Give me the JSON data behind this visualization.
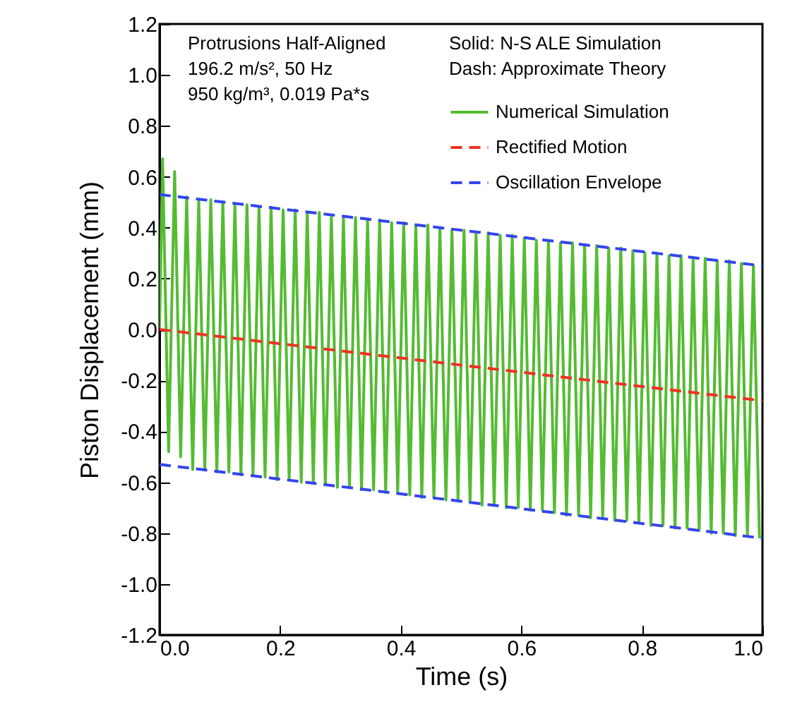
{
  "chart_data": {
    "type": "line",
    "xlabel": "Time (s)",
    "ylabel": "Piston Displacement (mm)",
    "xlim": [
      0,
      1
    ],
    "xticks": [
      {
        "value": 0,
        "label": "0.0"
      },
      0.2,
      0.4,
      0.6,
      0.8,
      {
        "value": 1,
        "label": "1.0"
      }
    ],
    "ylim": [
      -1.2,
      1.2
    ],
    "yticks": [
      -1.2,
      {
        "value": -1,
        "label": "-1.0"
      },
      -0.8,
      -0.6,
      -0.4,
      -0.2,
      {
        "value": 0,
        "label": "0.0"
      },
      0.2,
      0.4,
      0.6,
      0.8,
      {
        "value": 1,
        "label": "1.0"
      },
      1.2
    ],
    "grid": false,
    "legend": "top right",
    "marker": "none",
    "annotations": [
      "Protrusions Half-Aligned",
      "196.2 m/s², 50 Hz",
      "950 kg/m³, 0.019 Pa*s",
      "Solid:  N-S ALE Simulation",
      "Dash:  Approximate Theory"
    ],
    "series": [
      {
        "name": "Numerical Simulation",
        "color": "#55bb33",
        "line_style": "solid",
        "x": [
          0,
          0.005,
          0.015,
          0.025,
          0.035,
          0.045,
          0.055,
          0.065,
          0.075,
          0.085,
          0.095,
          0.105,
          0.115,
          0.125,
          0.135,
          0.145,
          0.155,
          0.165,
          0.175,
          0.185,
          0.195,
          0.205,
          0.215,
          0.225,
          0.235,
          0.245,
          0.255,
          0.265,
          0.275,
          0.285,
          0.295,
          0.305,
          0.315,
          0.325,
          0.335,
          0.345,
          0.355,
          0.365,
          0.375,
          0.385,
          0.395,
          0.405,
          0.415,
          0.425,
          0.435,
          0.445,
          0.455,
          0.465,
          0.475,
          0.485,
          0.495,
          0.505,
          0.515,
          0.525,
          0.535,
          0.545,
          0.555,
          0.565,
          0.575,
          0.585,
          0.595,
          0.605,
          0.615,
          0.625,
          0.635,
          0.645,
          0.655,
          0.665,
          0.675,
          0.685,
          0.695,
          0.705,
          0.715,
          0.725,
          0.735,
          0.745,
          0.755,
          0.765,
          0.775,
          0.785,
          0.795,
          0.805,
          0.815,
          0.825,
          0.835,
          0.845,
          0.855,
          0.865,
          0.875,
          0.885,
          0.895,
          0.905,
          0.915,
          0.925,
          0.935,
          0.945,
          0.955,
          0.965,
          0.975,
          0.985,
          0.995
        ],
        "values": [
          0,
          0.67,
          -0.48,
          0.62,
          -0.5,
          0.52,
          -0.55,
          0.51,
          -0.55,
          0.51,
          -0.56,
          0.5,
          -0.56,
          0.49,
          -0.57,
          0.49,
          -0.57,
          0.48,
          -0.58,
          0.48,
          -0.59,
          0.47,
          -0.59,
          0.47,
          -0.6,
          0.46,
          -0.6,
          0.46,
          -0.61,
          0.45,
          -0.62,
          0.44,
          -0.62,
          0.44,
          -0.63,
          0.43,
          -0.63,
          0.43,
          -0.64,
          0.42,
          -0.64,
          0.42,
          -0.65,
          0.41,
          -0.66,
          0.41,
          -0.66,
          0.4,
          -0.67,
          0.39,
          -0.67,
          0.39,
          -0.68,
          0.38,
          -0.69,
          0.38,
          -0.69,
          0.37,
          -0.7,
          0.37,
          -0.7,
          0.36,
          -0.71,
          0.35,
          -0.71,
          0.35,
          -0.72,
          0.34,
          -0.73,
          0.34,
          -0.73,
          0.33,
          -0.74,
          0.33,
          -0.74,
          0.32,
          -0.75,
          0.32,
          -0.75,
          0.31,
          -0.76,
          0.3,
          -0.77,
          0.3,
          -0.77,
          0.29,
          -0.78,
          0.29,
          -0.78,
          0.28,
          -0.79,
          0.28,
          -0.8,
          0.27,
          -0.8,
          0.27,
          -0.81,
          0.26,
          -0.81,
          0.25,
          -0.82
        ]
      },
      {
        "name": "Rectified Motion",
        "color": "#ee3322",
        "line_style": "dashed",
        "x": [
          0,
          1
        ],
        "values": [
          0,
          -0.28
        ]
      },
      {
        "name": "Oscillation Envelope",
        "color": "#3344ee",
        "line_style": "dashed",
        "x": [
          0,
          1
        ],
        "values": [
          0.53,
          0.25
        ]
      },
      {
        "color": "#3344ee",
        "line_style": "dashed",
        "x": [
          0,
          1
        ],
        "values": [
          -0.53,
          -0.82
        ]
      }
    ]
  }
}
